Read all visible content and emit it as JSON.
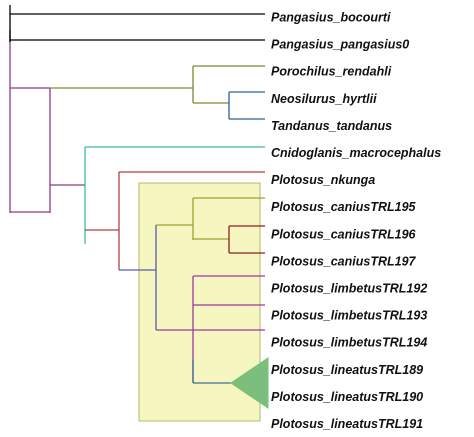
{
  "tree": {
    "taxa": [
      "Pangasius_bocourti",
      "Pangasius_pangasius0",
      "Porochilus_rendahli",
      "Neosilurus_hyrtlii",
      "Tandanus_tandanus",
      "Cnidoglanis_macrocephalus",
      "Plotosus_nkunga",
      "Plotosus_caniusTRL195",
      "Plotosus_caniusTRL196",
      "Plotosus_caniusTRL197",
      "Plotosus_limbetusTRL192",
      "Plotosus_limbetusTRL193",
      "Plotosus_limbetusTRL194",
      "Plotosus_lineatusTRL189",
      "Plotosus_lineatusTRL190",
      "Plotosus_lineatusTRL191"
    ],
    "highlight_clade_fill": "#f6f6c0",
    "highlight_clade_border": "#b8b86a",
    "collapsed_clade_fill": "#7cbf7c",
    "branch_colors": {
      "outgroup": "#000000",
      "root_split": "#8a3a8a",
      "porochilus_group": "#7d8a2e",
      "neo_tandanus": "#2f5f9a",
      "cnidoglanis": "#3fbf8f",
      "plotosus_stem": "#b04040",
      "plotosus_crown": "#5a5ab0",
      "canius_group": "#a0a030",
      "canius_pair": "#8b2020",
      "limbetus_group": "#9a3aa0",
      "lineatus_group": "#3a6f9a"
    }
  }
}
